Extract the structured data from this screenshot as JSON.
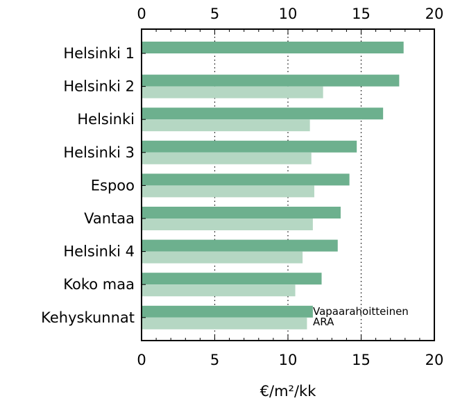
{
  "chart_data": {
    "type": "bar",
    "orientation": "horizontal",
    "categories": [
      "Helsinki 1",
      "Helsinki 2",
      "Helsinki",
      "Helsinki 3",
      "Espoo",
      "Vantaa",
      "Helsinki 4",
      "Koko maa",
      "Kehyskunnat"
    ],
    "series": [
      {
        "name": "Vapaarahoitteinen",
        "color": "#6db08e",
        "values": [
          17.9,
          17.6,
          16.5,
          14.7,
          14.2,
          13.6,
          13.4,
          12.3,
          11.7
        ]
      },
      {
        "name": "ARA",
        "color": "#b5d7c3",
        "values": [
          null,
          12.4,
          11.5,
          11.6,
          11.8,
          11.7,
          11.0,
          10.5,
          11.3
        ]
      }
    ],
    "xlim": [
      0,
      20
    ],
    "xticks": [
      "0",
      "5",
      "10",
      "15",
      "20"
    ],
    "xlabel": "€/m²/kk",
    "grid": "dotted vertical at 5, 10, 15",
    "legend_placement": "inside bottom-right, stacked next to last category"
  }
}
